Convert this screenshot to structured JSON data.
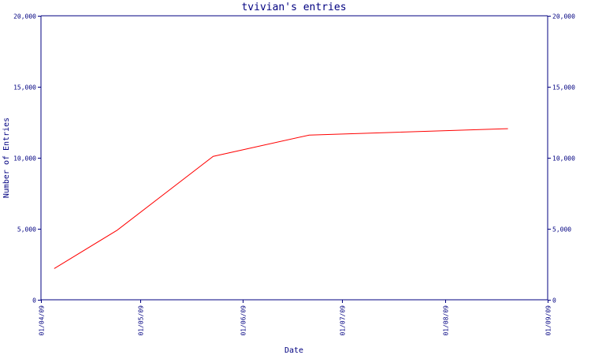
{
  "chart_data": {
    "type": "line",
    "title": "tvivian's entries",
    "xlabel": "Date",
    "ylabel": "Number of Entries",
    "x_tick_labels": [
      "01/04/09",
      "01/05/09",
      "01/06/09",
      "01/07/09",
      "01/08/09",
      "01/09/09"
    ],
    "x_ticks": [
      "2009-04-01",
      "2009-05-01",
      "2009-06-01",
      "2009-07-01",
      "2009-08-01",
      "2009-09-01"
    ],
    "y_tick_labels": [
      "0",
      "5,000",
      "10,000",
      "15,000",
      "20,000"
    ],
    "y_ticks": [
      0,
      5000,
      10000,
      15000,
      20000
    ],
    "ylim": [
      0,
      20000
    ],
    "xlim": [
      "2009-04-01",
      "2009-09-01"
    ],
    "right_axis": true,
    "grid": false,
    "series": [
      {
        "color": "#ff0000",
        "x": [
          "2009-04-05",
          "2009-04-24",
          "2009-05-23",
          "2009-06-21",
          "2009-08-20"
        ],
        "y": [
          2200,
          4900,
          10100,
          11600,
          12050
        ]
      }
    ]
  },
  "colors": {
    "axis": "#000080",
    "text": "#000080",
    "series": "#ff0000",
    "background": "#ffffff"
  }
}
